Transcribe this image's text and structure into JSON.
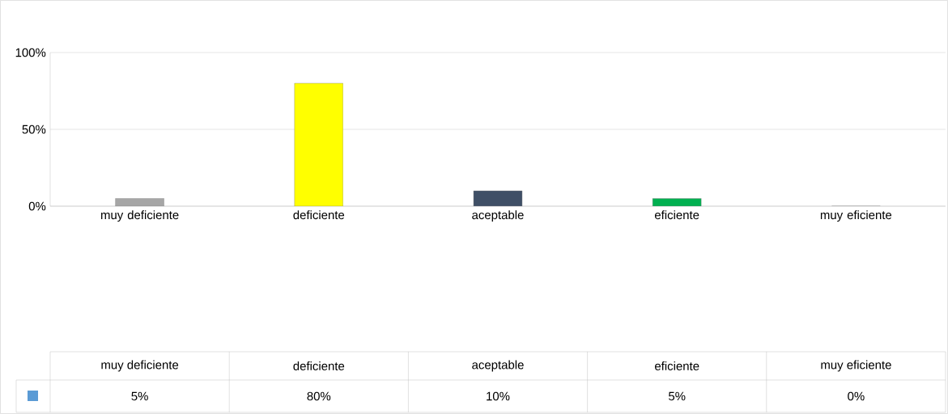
{
  "chart_data": {
    "type": "bar",
    "categories": [
      "muy deficiente",
      "deficiente",
      "aceptable",
      "eficiente",
      "muy eficiente"
    ],
    "values": [
      5,
      80,
      10,
      5,
      0
    ],
    "colors": [
      "#a6a6a6",
      "#ffff00",
      "#3f4f66",
      "#00b050",
      "#7030a0"
    ],
    "color": "#5b9bd5",
    "value_labels": [
      "5%",
      "80%",
      "10%",
      "5%",
      "0%"
    ],
    "ylim": [
      0,
      100
    ],
    "yticks": [
      {
        "value": 0,
        "label": "0%"
      },
      {
        "value": 50,
        "label": "50%"
      },
      {
        "value": 100,
        "label": "100%"
      }
    ],
    "grid": "y"
  }
}
